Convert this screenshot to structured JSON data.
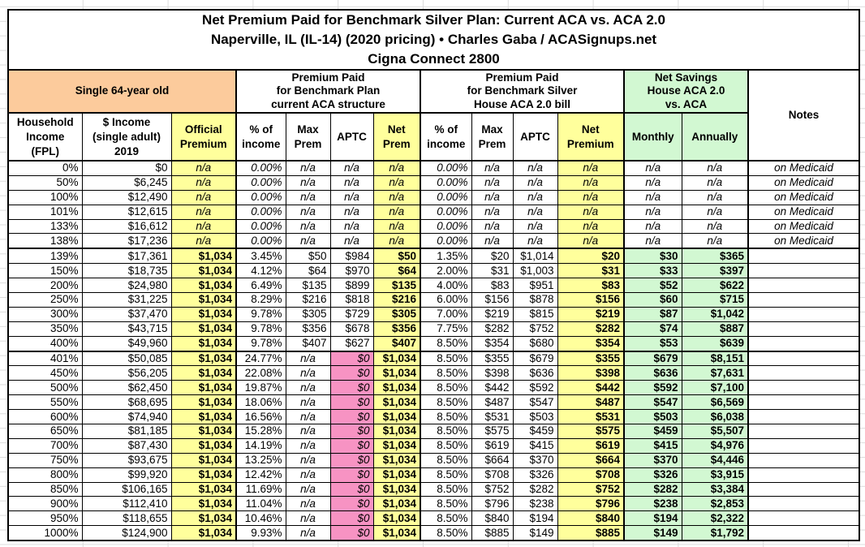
{
  "title": {
    "line1": "Net Premium Paid for Benchmark Silver Plan: Current ACA vs. ACA 2.0",
    "line2": "Naperville, IL (IL-14) (2020 pricing) • Charles Gaba / ACASignups.net",
    "line3": "Cigna Connect 2800"
  },
  "colors": {
    "orange": "#FCCB9C",
    "yellow": "#FFFF9C",
    "green": "#D2F8D2",
    "pink": "#F793C3",
    "border": "#000000",
    "gridline": "#DCDCDC"
  },
  "group_headers": {
    "subject": "Single 64-year old",
    "current_aca": "Premium Paid\nfor Benchmark Plan\ncurrent ACA structure",
    "house_aca2": "Premium Paid\nfor Benchmark Silver\nHouse ACA 2.0 bill",
    "net_savings": "Net Savings\nHouse ACA 2.0\nvs. ACA",
    "notes": "Notes"
  },
  "column_headers": [
    "Household\nIncome\n(FPL)",
    "$ Income\n(single adult)\n2019",
    "Official\nPremium",
    "% of\nincome",
    "Max\nPrem",
    "APTC",
    "Net\nPrem",
    "% of\nincome",
    "Max\nPrem",
    "APTC",
    "Net\nPremium",
    "Monthly",
    "Annually"
  ],
  "table": {
    "column_ids": [
      "fpl",
      "income",
      "official_premium",
      "aca_pct_income",
      "aca_max_prem",
      "aca_aptc",
      "aca_net_prem",
      "h_pct_income",
      "h_max_prem",
      "h_aptc",
      "h_net_premium",
      "monthly",
      "annually",
      "notes"
    ],
    "section_break_rows": [
      6,
      13
    ],
    "rows": [
      [
        "0%",
        "$0",
        "n/a",
        "0.00%",
        "n/a",
        "n/a",
        "n/a",
        "0.00%",
        "n/a",
        "n/a",
        "n/a",
        "n/a",
        "n/a",
        "on Medicaid"
      ],
      [
        "50%",
        "$6,245",
        "n/a",
        "0.00%",
        "n/a",
        "n/a",
        "n/a",
        "0.00%",
        "n/a",
        "n/a",
        "n/a",
        "n/a",
        "n/a",
        "on Medicaid"
      ],
      [
        "100%",
        "$12,490",
        "n/a",
        "0.00%",
        "n/a",
        "n/a",
        "n/a",
        "0.00%",
        "n/a",
        "n/a",
        "n/a",
        "n/a",
        "n/a",
        "on Medicaid"
      ],
      [
        "101%",
        "$12,615",
        "n/a",
        "0.00%",
        "n/a",
        "n/a",
        "n/a",
        "0.00%",
        "n/a",
        "n/a",
        "n/a",
        "n/a",
        "n/a",
        "on Medicaid"
      ],
      [
        "133%",
        "$16,612",
        "n/a",
        "0.00%",
        "n/a",
        "n/a",
        "n/a",
        "0.00%",
        "n/a",
        "n/a",
        "n/a",
        "n/a",
        "n/a",
        "on Medicaid"
      ],
      [
        "138%",
        "$17,236",
        "n/a",
        "0.00%",
        "n/a",
        "n/a",
        "n/a",
        "0.00%",
        "n/a",
        "n/a",
        "n/a",
        "n/a",
        "n/a",
        "on Medicaid"
      ],
      [
        "139%",
        "$17,361",
        "$1,034",
        "3.45%",
        "$50",
        "$984",
        "$50",
        "1.35%",
        "$20",
        "$1,014",
        "$20",
        "$30",
        "$365",
        ""
      ],
      [
        "150%",
        "$18,735",
        "$1,034",
        "4.12%",
        "$64",
        "$970",
        "$64",
        "2.00%",
        "$31",
        "$1,003",
        "$31",
        "$33",
        "$397",
        ""
      ],
      [
        "200%",
        "$24,980",
        "$1,034",
        "6.49%",
        "$135",
        "$899",
        "$135",
        "4.00%",
        "$83",
        "$951",
        "$83",
        "$52",
        "$622",
        ""
      ],
      [
        "250%",
        "$31,225",
        "$1,034",
        "8.29%",
        "$216",
        "$818",
        "$216",
        "6.00%",
        "$156",
        "$878",
        "$156",
        "$60",
        "$715",
        ""
      ],
      [
        "300%",
        "$37,470",
        "$1,034",
        "9.78%",
        "$305",
        "$729",
        "$305",
        "7.00%",
        "$219",
        "$815",
        "$219",
        "$87",
        "$1,042",
        ""
      ],
      [
        "350%",
        "$43,715",
        "$1,034",
        "9.78%",
        "$356",
        "$678",
        "$356",
        "7.75%",
        "$282",
        "$752",
        "$282",
        "$74",
        "$887",
        ""
      ],
      [
        "400%",
        "$49,960",
        "$1,034",
        "9.78%",
        "$407",
        "$627",
        "$407",
        "8.50%",
        "$354",
        "$680",
        "$354",
        "$53",
        "$639",
        ""
      ],
      [
        "401%",
        "$50,085",
        "$1,034",
        "24.77%",
        "n/a",
        "$0",
        "$1,034",
        "8.50%",
        "$355",
        "$679",
        "$355",
        "$679",
        "$8,151",
        ""
      ],
      [
        "450%",
        "$56,205",
        "$1,034",
        "22.08%",
        "n/a",
        "$0",
        "$1,034",
        "8.50%",
        "$398",
        "$636",
        "$398",
        "$636",
        "$7,631",
        ""
      ],
      [
        "500%",
        "$62,450",
        "$1,034",
        "19.87%",
        "n/a",
        "$0",
        "$1,034",
        "8.50%",
        "$442",
        "$592",
        "$442",
        "$592",
        "$7,100",
        ""
      ],
      [
        "550%",
        "$68,695",
        "$1,034",
        "18.06%",
        "n/a",
        "$0",
        "$1,034",
        "8.50%",
        "$487",
        "$547",
        "$487",
        "$547",
        "$6,569",
        ""
      ],
      [
        "600%",
        "$74,940",
        "$1,034",
        "16.56%",
        "n/a",
        "$0",
        "$1,034",
        "8.50%",
        "$531",
        "$503",
        "$531",
        "$503",
        "$6,038",
        ""
      ],
      [
        "650%",
        "$81,185",
        "$1,034",
        "15.28%",
        "n/a",
        "$0",
        "$1,034",
        "8.50%",
        "$575",
        "$459",
        "$575",
        "$459",
        "$5,507",
        ""
      ],
      [
        "700%",
        "$87,430",
        "$1,034",
        "14.19%",
        "n/a",
        "$0",
        "$1,034",
        "8.50%",
        "$619",
        "$415",
        "$619",
        "$415",
        "$4,976",
        ""
      ],
      [
        "750%",
        "$93,675",
        "$1,034",
        "13.25%",
        "n/a",
        "$0",
        "$1,034",
        "8.50%",
        "$664",
        "$370",
        "$664",
        "$370",
        "$4,446",
        ""
      ],
      [
        "800%",
        "$99,920",
        "$1,034",
        "12.42%",
        "n/a",
        "$0",
        "$1,034",
        "8.50%",
        "$708",
        "$326",
        "$708",
        "$326",
        "$3,915",
        ""
      ],
      [
        "850%",
        "$106,165",
        "$1,034",
        "11.69%",
        "n/a",
        "$0",
        "$1,034",
        "8.50%",
        "$752",
        "$282",
        "$752",
        "$282",
        "$3,384",
        ""
      ],
      [
        "900%",
        "$112,410",
        "$1,034",
        "11.04%",
        "n/a",
        "$0",
        "$1,034",
        "8.50%",
        "$796",
        "$238",
        "$796",
        "$238",
        "$2,853",
        ""
      ],
      [
        "950%",
        "$118,655",
        "$1,034",
        "10.46%",
        "n/a",
        "$0",
        "$1,034",
        "8.50%",
        "$840",
        "$194",
        "$840",
        "$194",
        "$2,322",
        ""
      ],
      [
        "1000%",
        "$124,900",
        "$1,034",
        "9.93%",
        "n/a",
        "$0",
        "$1,034",
        "8.50%",
        "$885",
        "$149",
        "$885",
        "$149",
        "$1,792",
        ""
      ]
    ]
  }
}
